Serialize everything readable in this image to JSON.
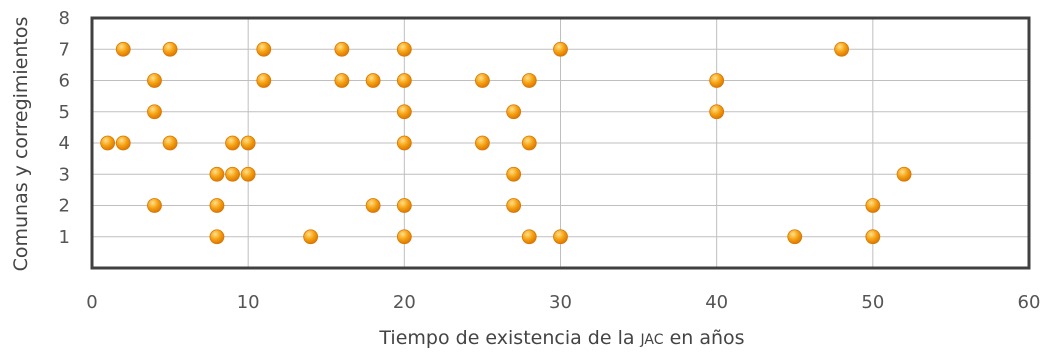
{
  "chart_data": {
    "type": "scatter",
    "title": "",
    "xlabel": "Tiempo de existencia de la JAC en años",
    "xlabel_parts": {
      "before": "Tiempo de existencia de la ",
      "small_caps": "JAC",
      "after": " en años"
    },
    "ylabel": "Comunas y corregimientos",
    "xlim": [
      0,
      60
    ],
    "ylim": [
      0,
      8
    ],
    "xticks": [
      0,
      10,
      20,
      30,
      40,
      50,
      60
    ],
    "yticks": [
      1,
      2,
      3,
      4,
      5,
      6,
      7,
      8
    ],
    "grid": true,
    "legend": "none",
    "marker_color": "#f5a00f",
    "marker_highlight": "#ffe08a",
    "marker_edge": "#d97706",
    "series": [
      {
        "points": [
          [
            2,
            7
          ],
          [
            5,
            7
          ],
          [
            11,
            7
          ],
          [
            16,
            7
          ],
          [
            20,
            7
          ],
          [
            30,
            7
          ],
          [
            48,
            7
          ],
          [
            4,
            6
          ],
          [
            11,
            6
          ],
          [
            16,
            6
          ],
          [
            18,
            6
          ],
          [
            20,
            6
          ],
          [
            25,
            6
          ],
          [
            28,
            6
          ],
          [
            40,
            6
          ],
          [
            4,
            5
          ],
          [
            20,
            5
          ],
          [
            27,
            5
          ],
          [
            40,
            5
          ],
          [
            1,
            4
          ],
          [
            2,
            4
          ],
          [
            5,
            4
          ],
          [
            9,
            4
          ],
          [
            10,
            4
          ],
          [
            20,
            4
          ],
          [
            25,
            4
          ],
          [
            28,
            4
          ],
          [
            8,
            3
          ],
          [
            9,
            3
          ],
          [
            10,
            3
          ],
          [
            27,
            3
          ],
          [
            52,
            3
          ],
          [
            4,
            2
          ],
          [
            8,
            2
          ],
          [
            18,
            2
          ],
          [
            20,
            2
          ],
          [
            27,
            2
          ],
          [
            50,
            2
          ],
          [
            8,
            1
          ],
          [
            14,
            1
          ],
          [
            20,
            1
          ],
          [
            28,
            1
          ],
          [
            30,
            1
          ],
          [
            45,
            1
          ],
          [
            50,
            1
          ]
        ]
      }
    ]
  }
}
